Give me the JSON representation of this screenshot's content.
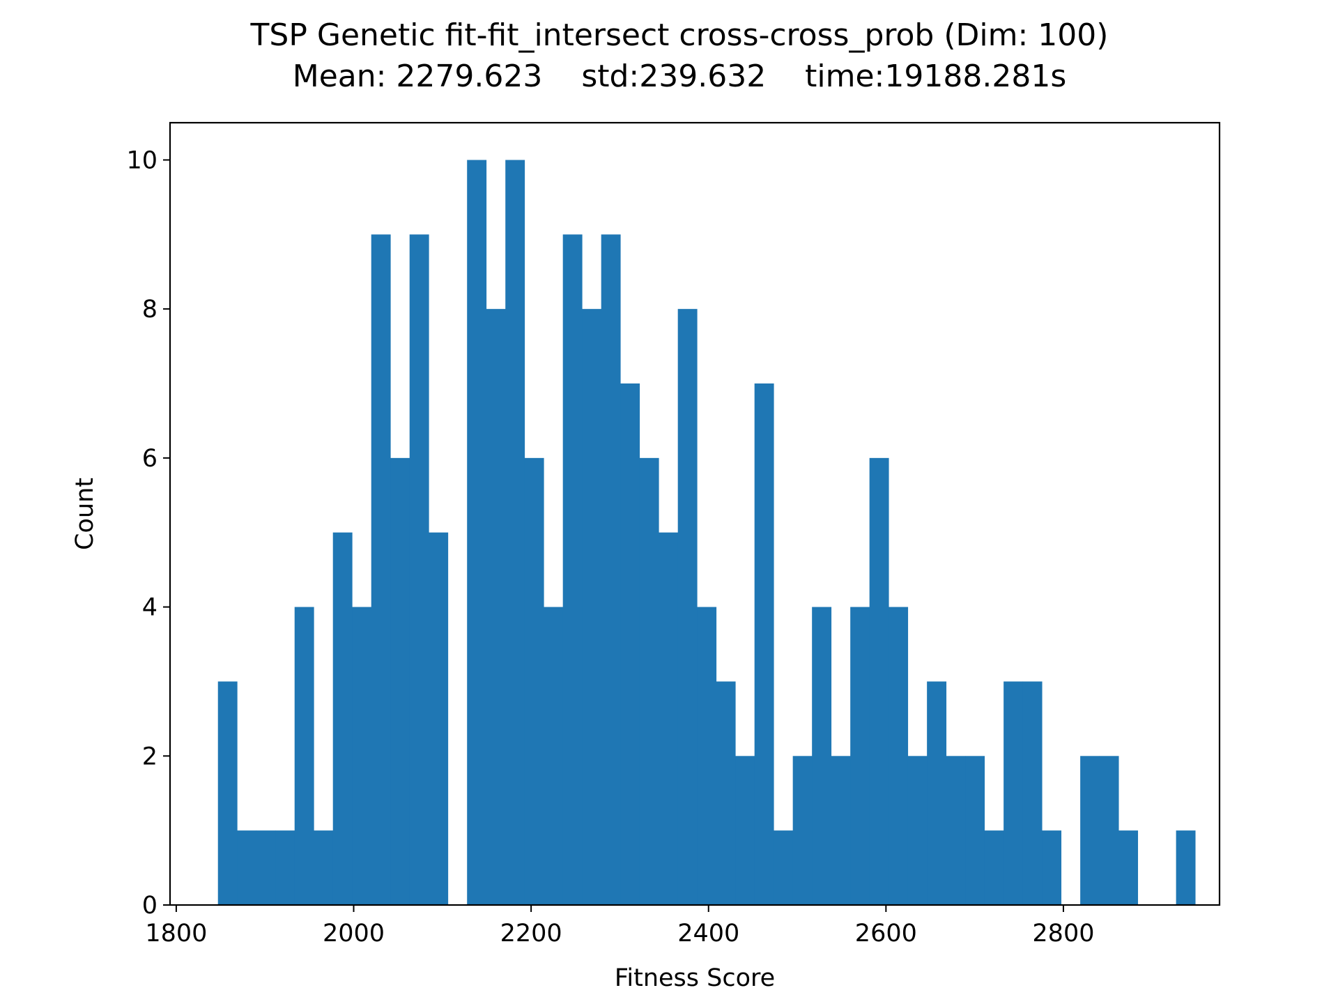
{
  "chart_data": {
    "type": "bar",
    "title": "TSP Genetic fit-fit_intersect cross-cross_prob (Dim: 100)",
    "subtitle": "Mean: 2279.623    std:239.632    time:19188.281s",
    "xlabel": "Fitness Score",
    "ylabel": "Count",
    "xlim": [
      1793,
      2976
    ],
    "ylim": [
      0,
      10.5
    ],
    "xticks": [
      "1800",
      "2000",
      "2200",
      "2400",
      "2600",
      "2800"
    ],
    "yticks": [
      "0",
      "2",
      "4",
      "6",
      "8",
      "10"
    ],
    "xtick_values": [
      1800,
      2000,
      2200,
      2400,
      2600,
      2800
    ],
    "ytick_values": [
      0,
      2,
      4,
      6,
      8,
      10
    ],
    "bin_start": 1847,
    "bin_width": 21.6,
    "values": [
      3,
      1,
      1,
      1,
      4,
      1,
      5,
      4,
      9,
      6,
      9,
      5,
      0,
      10,
      8,
      10,
      6,
      4,
      9,
      8,
      9,
      7,
      6,
      5,
      8,
      4,
      3,
      2,
      7,
      1,
      2,
      4,
      2,
      4,
      6,
      4,
      2,
      3,
      2,
      2,
      1,
      3,
      3,
      1,
      0,
      2,
      2,
      1,
      0,
      0,
      1
    ],
    "bar_color": "#1f77b4",
    "grid": false,
    "legend": "none"
  }
}
